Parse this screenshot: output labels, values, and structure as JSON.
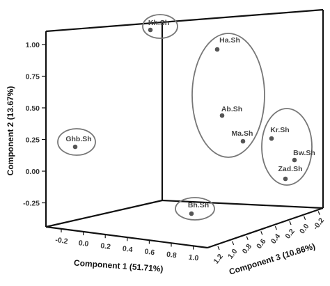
{
  "chart_data": {
    "type": "scatter",
    "subtype": "3d-scatter",
    "x_axis": {
      "label": "Component 1 (51.71%)",
      "ticks": [
        "-0.2",
        "0.0",
        "0.2",
        "0.4",
        "0.6",
        "0.8",
        "1.0"
      ]
    },
    "y_axis": {
      "label": "Component 2 (13.67%)",
      "ticks": [
        "1.00",
        "0.75",
        "0.50",
        "0.25",
        "0.00",
        "-0.25"
      ]
    },
    "z_axis": {
      "label": "Component 3 (10.86%)",
      "ticks": [
        "1.2",
        "1.0",
        "0.8",
        "0.6",
        "0.4",
        "0.2",
        "0.0",
        "-0.2"
      ]
    },
    "points": [
      {
        "label": "Kh.Sh",
        "y": 1.1,
        "group": "g1"
      },
      {
        "label": "Ha.Sh",
        "y": 0.95,
        "group": "g2"
      },
      {
        "label": "Ab.Sh",
        "y": 0.42,
        "group": "g2"
      },
      {
        "label": "Ma.Sh",
        "y": 0.22,
        "group": "g2"
      },
      {
        "label": "Kr.Sh",
        "y": 0.24,
        "group": "g3"
      },
      {
        "label": "Bw.Sh",
        "y": 0.08,
        "group": "g3"
      },
      {
        "label": "Zad.Sh",
        "y": -0.07,
        "group": "g3"
      },
      {
        "label": "Ghb.Sh",
        "y": 0.17,
        "group": "g4"
      },
      {
        "label": "Bh.Sh",
        "y": -0.4,
        "group": "g5"
      }
    ],
    "grid": false,
    "legend": "none",
    "colors": {
      "frame": "#111111",
      "points": "#555555",
      "ellipses": "#777777"
    }
  }
}
